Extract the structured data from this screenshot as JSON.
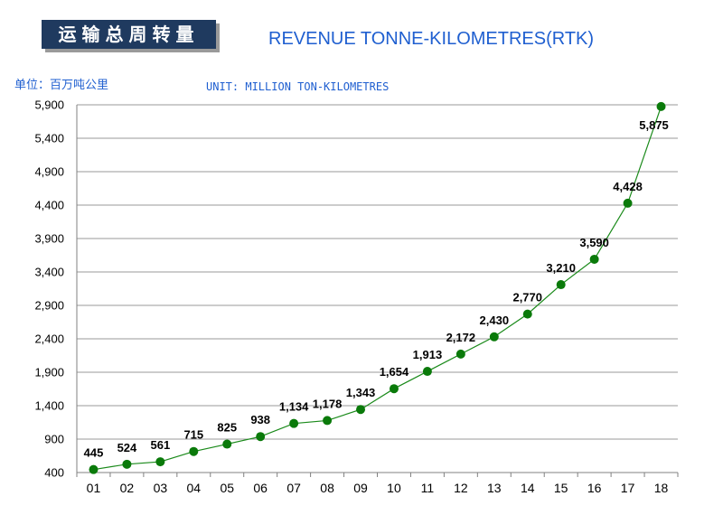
{
  "header": {
    "title_cn": "运输总周转量",
    "title_en": "REVENUE TONNE-KILOMETRES(RTK)",
    "unit_cn": "单位：百万吨公里",
    "unit_en": "UNIT: MILLION TON-KILOMETRES"
  },
  "colors": {
    "title_box": "#1f3a5f",
    "title_text": "#1f5fd0",
    "line": "#1a8a1a",
    "point": "#0a7a0a",
    "grid": "#9a9a9a"
  },
  "chart_data": {
    "type": "line",
    "title": "REVENUE TONNE-KILOMETRES(RTK)",
    "xlabel": "",
    "ylabel": "",
    "categories": [
      "01",
      "02",
      "03",
      "04",
      "05",
      "06",
      "07",
      "08",
      "09",
      "10",
      "11",
      "12",
      "13",
      "14",
      "15",
      "16",
      "17",
      "18"
    ],
    "values": [
      445,
      524,
      561,
      715,
      825,
      938,
      1134,
      1178,
      1343,
      1654,
      1913,
      2172,
      2430,
      2770,
      3210,
      3590,
      4428,
      5875
    ],
    "data_labels": [
      "445",
      "524",
      "561",
      "715",
      "825",
      "938",
      "1,134",
      "1,178",
      "1,343",
      "1,654",
      "1,913",
      "2,172",
      "2,430",
      "2,770",
      "3,210",
      "3,590",
      "4,428",
      "5,875"
    ],
    "ylim": [
      400,
      5900
    ],
    "yticks": [
      400,
      900,
      1400,
      1900,
      2400,
      2900,
      3400,
      3900,
      4400,
      4900,
      5400,
      5900
    ],
    "ytick_labels": [
      "400",
      "900",
      "1,400",
      "1,900",
      "2,400",
      "2,900",
      "3,400",
      "3,900",
      "4,400",
      "4,900",
      "5,400",
      "5,900"
    ],
    "grid": true,
    "legend": "none"
  }
}
